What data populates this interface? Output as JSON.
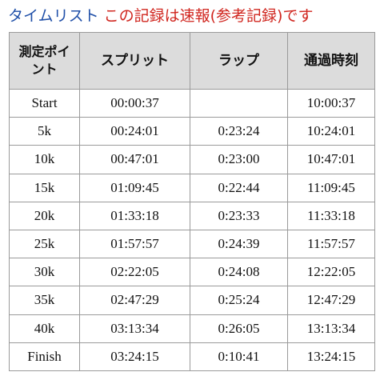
{
  "title": {
    "main": "タイムリスト",
    "note": "この記録は速報(参考記録)です"
  },
  "table": {
    "headers": {
      "point": "測定ポイント",
      "split": "スプリット",
      "lap": "ラップ",
      "passing_time": "通過時刻"
    },
    "rows": [
      {
        "point": "Start",
        "split": "00:00:37",
        "lap": "",
        "passing_time": "10:00:37"
      },
      {
        "point": "5k",
        "split": "00:24:01",
        "lap": "0:23:24",
        "passing_time": "10:24:01"
      },
      {
        "point": "10k",
        "split": "00:47:01",
        "lap": "0:23:00",
        "passing_time": "10:47:01"
      },
      {
        "point": "15k",
        "split": "01:09:45",
        "lap": "0:22:44",
        "passing_time": "11:09:45"
      },
      {
        "point": "20k",
        "split": "01:33:18",
        "lap": "0:23:33",
        "passing_time": "11:33:18"
      },
      {
        "point": "25k",
        "split": "01:57:57",
        "lap": "0:24:39",
        "passing_time": "11:57:57"
      },
      {
        "point": "30k",
        "split": "02:22:05",
        "lap": "0:24:08",
        "passing_time": "12:22:05"
      },
      {
        "point": "35k",
        "split": "02:47:29",
        "lap": "0:25:24",
        "passing_time": "12:47:29"
      },
      {
        "point": "40k",
        "split": "03:13:34",
        "lap": "0:26:05",
        "passing_time": "13:13:34"
      },
      {
        "point": "Finish",
        "split": "03:24:15",
        "lap": "0:10:41",
        "passing_time": "13:24:15"
      }
    ]
  }
}
